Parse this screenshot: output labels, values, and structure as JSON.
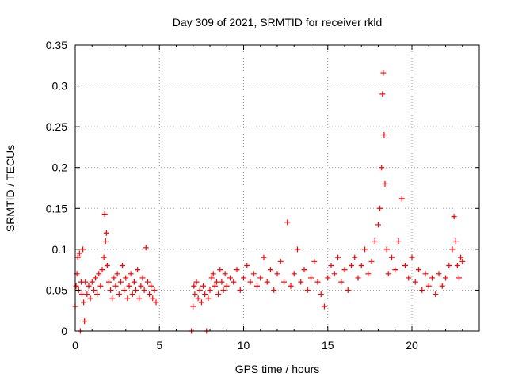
{
  "chart_data": {
    "type": "scatter",
    "title": "Day 309 of 2021, SRMTID for receiver rkld",
    "xlabel": "GPS time / hours",
    "ylabel": "SRMTID / TECUs",
    "xlim": [
      0,
      24
    ],
    "ylim": [
      0,
      0.35
    ],
    "x_ticks": [
      0,
      5,
      10,
      15,
      20
    ],
    "x_tick_labels": [
      "0",
      "5",
      "10",
      "15",
      "20"
    ],
    "y_ticks": [
      0,
      0.05,
      0.1,
      0.15,
      0.2,
      0.25,
      0.3,
      0.35
    ],
    "y_tick_labels": [
      "0",
      "0.05",
      "0.1",
      "0.15",
      "0.2",
      "0.25",
      "0.3",
      "0.35"
    ],
    "grid": true,
    "marker": "plus",
    "color": "#ff0000",
    "series": [
      {
        "name": "SRMTID",
        "points": [
          [
            0.0,
            0.03
          ],
          [
            0.05,
            0.055
          ],
          [
            0.1,
            0.07
          ],
          [
            0.15,
            0.09
          ],
          [
            0.2,
            0.05
          ],
          [
            0.25,
            0.095
          ],
          [
            0.3,
            0.0
          ],
          [
            0.35,
            0.06
          ],
          [
            0.4,
            0.045
          ],
          [
            0.45,
            0.1
          ],
          [
            0.5,
            0.035
          ],
          [
            0.55,
            0.012
          ],
          [
            0.6,
            0.06
          ],
          [
            0.7,
            0.045
          ],
          [
            0.8,
            0.055
          ],
          [
            0.9,
            0.04
          ],
          [
            1.0,
            0.06
          ],
          [
            1.1,
            0.05
          ],
          [
            1.2,
            0.065
          ],
          [
            1.3,
            0.045
          ],
          [
            1.4,
            0.07
          ],
          [
            1.5,
            0.055
          ],
          [
            1.6,
            0.075
          ],
          [
            1.7,
            0.09
          ],
          [
            1.75,
            0.143
          ],
          [
            1.8,
            0.11
          ],
          [
            1.85,
            0.12
          ],
          [
            1.9,
            0.08
          ],
          [
            2.0,
            0.06
          ],
          [
            2.1,
            0.05
          ],
          [
            2.2,
            0.04
          ],
          [
            2.3,
            0.065
          ],
          [
            2.4,
            0.055
          ],
          [
            2.5,
            0.07
          ],
          [
            2.6,
            0.045
          ],
          [
            2.7,
            0.06
          ],
          [
            2.8,
            0.08
          ],
          [
            2.9,
            0.05
          ],
          [
            3.0,
            0.065
          ],
          [
            3.1,
            0.04
          ],
          [
            3.2,
            0.055
          ],
          [
            3.3,
            0.07
          ],
          [
            3.4,
            0.045
          ],
          [
            3.5,
            0.06
          ],
          [
            3.6,
            0.05
          ],
          [
            3.7,
            0.075
          ],
          [
            3.8,
            0.04
          ],
          [
            3.9,
            0.055
          ],
          [
            4.0,
            0.065
          ],
          [
            4.1,
            0.05
          ],
          [
            4.2,
            0.102
          ],
          [
            4.3,
            0.06
          ],
          [
            4.4,
            0.045
          ],
          [
            4.5,
            0.055
          ],
          [
            4.6,
            0.04
          ],
          [
            4.7,
            0.05
          ],
          [
            4.8,
            0.035
          ],
          [
            6.9,
            0.0
          ],
          [
            7.0,
            0.03
          ],
          [
            7.05,
            0.055
          ],
          [
            7.1,
            0.045
          ],
          [
            7.2,
            0.06
          ],
          [
            7.3,
            0.04
          ],
          [
            7.4,
            0.05
          ],
          [
            7.5,
            0.035
          ],
          [
            7.6,
            0.055
          ],
          [
            7.7,
            0.045
          ],
          [
            7.8,
            0.0
          ],
          [
            7.9,
            0.04
          ],
          [
            8.0,
            0.05
          ],
          [
            8.1,
            0.065
          ],
          [
            8.2,
            0.07
          ],
          [
            8.3,
            0.055
          ],
          [
            8.4,
            0.06
          ],
          [
            8.5,
            0.045
          ],
          [
            8.6,
            0.075
          ],
          [
            8.7,
            0.06
          ],
          [
            8.8,
            0.05
          ],
          [
            8.9,
            0.07
          ],
          [
            9.0,
            0.055
          ],
          [
            9.2,
            0.065
          ],
          [
            9.4,
            0.06
          ],
          [
            9.6,
            0.075
          ],
          [
            9.8,
            0.05
          ],
          [
            10.0,
            0.065
          ],
          [
            10.2,
            0.08
          ],
          [
            10.4,
            0.06
          ],
          [
            10.6,
            0.07
          ],
          [
            10.8,
            0.055
          ],
          [
            11.0,
            0.065
          ],
          [
            11.2,
            0.09
          ],
          [
            11.4,
            0.06
          ],
          [
            11.6,
            0.075
          ],
          [
            11.8,
            0.05
          ],
          [
            12.0,
            0.07
          ],
          [
            12.2,
            0.085
          ],
          [
            12.4,
            0.06
          ],
          [
            12.6,
            0.133
          ],
          [
            12.8,
            0.055
          ],
          [
            13.0,
            0.07
          ],
          [
            13.2,
            0.1
          ],
          [
            13.4,
            0.06
          ],
          [
            13.6,
            0.075
          ],
          [
            13.8,
            0.05
          ],
          [
            14.0,
            0.065
          ],
          [
            14.2,
            0.085
          ],
          [
            14.4,
            0.06
          ],
          [
            14.6,
            0.045
          ],
          [
            14.8,
            0.03
          ],
          [
            15.0,
            0.065
          ],
          [
            15.2,
            0.08
          ],
          [
            15.4,
            0.07
          ],
          [
            15.6,
            0.09
          ],
          [
            15.8,
            0.06
          ],
          [
            16.0,
            0.075
          ],
          [
            16.2,
            0.05
          ],
          [
            16.4,
            0.08
          ],
          [
            16.6,
            0.09
          ],
          [
            16.8,
            0.065
          ],
          [
            17.0,
            0.08
          ],
          [
            17.2,
            0.1
          ],
          [
            17.4,
            0.07
          ],
          [
            17.6,
            0.085
          ],
          [
            17.8,
            0.11
          ],
          [
            18.0,
            0.13
          ],
          [
            18.1,
            0.15
          ],
          [
            18.2,
            0.2
          ],
          [
            18.25,
            0.29
          ],
          [
            18.3,
            0.316
          ],
          [
            18.35,
            0.24
          ],
          [
            18.4,
            0.18
          ],
          [
            18.5,
            0.1
          ],
          [
            18.6,
            0.07
          ],
          [
            18.8,
            0.09
          ],
          [
            19.0,
            0.075
          ],
          [
            19.2,
            0.11
          ],
          [
            19.4,
            0.162
          ],
          [
            19.6,
            0.08
          ],
          [
            19.8,
            0.065
          ],
          [
            20.0,
            0.09
          ],
          [
            20.2,
            0.06
          ],
          [
            20.4,
            0.075
          ],
          [
            20.6,
            0.05
          ],
          [
            20.8,
            0.07
          ],
          [
            21.0,
            0.055
          ],
          [
            21.2,
            0.065
          ],
          [
            21.4,
            0.045
          ],
          [
            21.6,
            0.07
          ],
          [
            21.8,
            0.055
          ],
          [
            22.0,
            0.065
          ],
          [
            22.2,
            0.08
          ],
          [
            22.4,
            0.1
          ],
          [
            22.5,
            0.14
          ],
          [
            22.6,
            0.11
          ],
          [
            22.7,
            0.08
          ],
          [
            22.8,
            0.065
          ],
          [
            22.9,
            0.09
          ],
          [
            23.0,
            0.085
          ]
        ]
      }
    ]
  }
}
